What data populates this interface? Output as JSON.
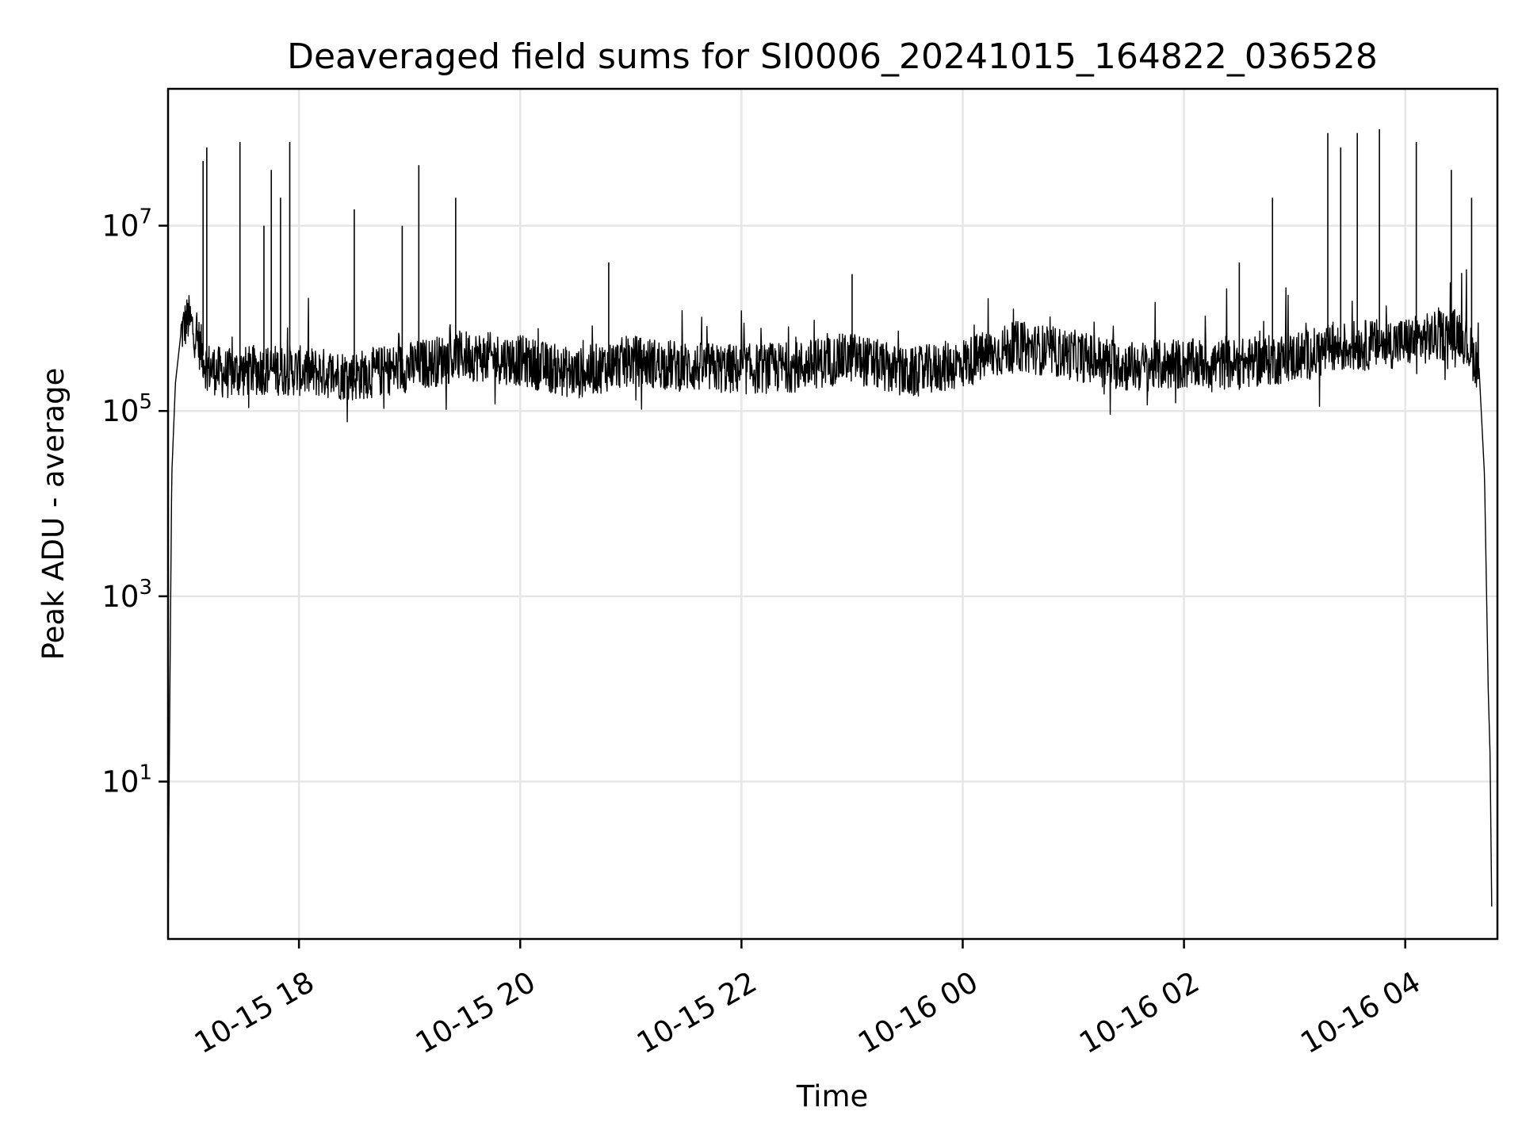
{
  "chart_data": {
    "type": "line",
    "title": "Deaveraged field sums for SI0006_20241015_164822_036528",
    "xlabel": "Time",
    "ylabel": "Peak ADU - average",
    "xscale": "time",
    "yscale": "log",
    "xlim": [
      "2024-10-15 16:49",
      "2024-10-16 04:50"
    ],
    "ylim": [
      0.2,
      300000000
    ],
    "grid": true,
    "line_color": "#000000",
    "xticks": [
      {
        "value": "2024-10-15 18:00",
        "label": "10-15 18"
      },
      {
        "value": "2024-10-15 20:00",
        "label": "10-15 20"
      },
      {
        "value": "2024-10-15 22:00",
        "label": "10-15 22"
      },
      {
        "value": "2024-10-16 00:00",
        "label": "10-16 00"
      },
      {
        "value": "2024-10-16 02:00",
        "label": "10-16 02"
      },
      {
        "value": "2024-10-16 04:00",
        "label": "10-16 04"
      }
    ],
    "yticks": [
      {
        "value": 10,
        "base": "10",
        "exp": "1"
      },
      {
        "value": 1000,
        "base": "10",
        "exp": "3"
      },
      {
        "value": 100000,
        "base": "10",
        "exp": "5"
      },
      {
        "value": 10000000,
        "base": "10",
        "exp": "7"
      }
    ],
    "series": [
      {
        "points": [
          {
            "t": "2024-10-15 16:49",
            "y": 0.3
          },
          {
            "t": "2024-10-15 16:50",
            "y": 100
          },
          {
            "t": "2024-10-15 16:51",
            "y": 20000
          },
          {
            "t": "2024-10-15 16:53",
            "y": 200000
          },
          {
            "t": "2024-10-15 16:56",
            "y": 700000
          },
          {
            "t": "2024-10-15 17:00",
            "y": 1000000
          },
          {
            "t": "2024-10-15 17:05",
            "y": 600000
          },
          {
            "t": "2024-10-15 17:10",
            "y": 300000
          },
          {
            "t": "2024-10-15 17:20",
            "y": 250000
          },
          {
            "t": "2024-10-15 17:40",
            "y": 280000
          },
          {
            "t": "2024-10-15 18:00",
            "y": 270000
          },
          {
            "t": "2024-10-15 18:30",
            "y": 240000
          },
          {
            "t": "2024-10-15 19:00",
            "y": 300000
          },
          {
            "t": "2024-10-15 19:30",
            "y": 400000
          },
          {
            "t": "2024-10-15 20:00",
            "y": 350000
          },
          {
            "t": "2024-10-15 20:30",
            "y": 250000
          },
          {
            "t": "2024-10-15 21:00",
            "y": 350000
          },
          {
            "t": "2024-10-15 21:30",
            "y": 300000
          },
          {
            "t": "2024-10-15 22:00",
            "y": 280000
          },
          {
            "t": "2024-10-15 22:30",
            "y": 300000
          },
          {
            "t": "2024-10-15 23:00",
            "y": 380000
          },
          {
            "t": "2024-10-15 23:30",
            "y": 250000
          },
          {
            "t": "2024-10-16 00:00",
            "y": 330000
          },
          {
            "t": "2024-10-16 00:30",
            "y": 500000
          },
          {
            "t": "2024-10-16 01:00",
            "y": 400000
          },
          {
            "t": "2024-10-16 01:30",
            "y": 300000
          },
          {
            "t": "2024-10-16 02:00",
            "y": 320000
          },
          {
            "t": "2024-10-16 02:30",
            "y": 320000
          },
          {
            "t": "2024-10-16 03:00",
            "y": 380000
          },
          {
            "t": "2024-10-16 03:30",
            "y": 500000
          },
          {
            "t": "2024-10-16 04:00",
            "y": 550000
          },
          {
            "t": "2024-10-16 04:30",
            "y": 700000
          },
          {
            "t": "2024-10-16 04:40",
            "y": 300000
          },
          {
            "t": "2024-10-16 04:43",
            "y": 20000
          },
          {
            "t": "2024-10-16 04:45",
            "y": 100
          },
          {
            "t": "2024-10-16 04:46",
            "y": 20
          },
          {
            "t": "2024-10-16 04:47",
            "y": 0.3
          }
        ],
        "spikes": [
          {
            "t": "2024-10-15 17:08",
            "y": 50000000
          },
          {
            "t": "2024-10-15 17:10",
            "y": 70000000
          },
          {
            "t": "2024-10-15 17:28",
            "y": 80000000
          },
          {
            "t": "2024-10-15 17:41",
            "y": 10000000
          },
          {
            "t": "2024-10-15 17:45",
            "y": 40000000
          },
          {
            "t": "2024-10-15 17:50",
            "y": 20000000
          },
          {
            "t": "2024-10-15 17:55",
            "y": 80000000
          },
          {
            "t": "2024-10-15 18:30",
            "y": 15000000
          },
          {
            "t": "2024-10-15 18:56",
            "y": 10000000
          },
          {
            "t": "2024-10-15 19:05",
            "y": 45000000
          },
          {
            "t": "2024-10-15 19:25",
            "y": 20000000
          },
          {
            "t": "2024-10-15 20:48",
            "y": 4000000
          },
          {
            "t": "2024-10-15 23:00",
            "y": 3000000
          },
          {
            "t": "2024-10-16 02:30",
            "y": 4000000
          },
          {
            "t": "2024-10-16 02:48",
            "y": 20000000
          },
          {
            "t": "2024-10-16 03:18",
            "y": 100000000
          },
          {
            "t": "2024-10-16 03:25",
            "y": 70000000
          },
          {
            "t": "2024-10-16 03:34",
            "y": 100000000
          },
          {
            "t": "2024-10-16 03:46",
            "y": 110000000
          },
          {
            "t": "2024-10-16 04:06",
            "y": 80000000
          },
          {
            "t": "2024-10-16 04:25",
            "y": 40000000
          },
          {
            "t": "2024-10-16 04:36",
            "y": 20000000
          }
        ]
      }
    ]
  }
}
